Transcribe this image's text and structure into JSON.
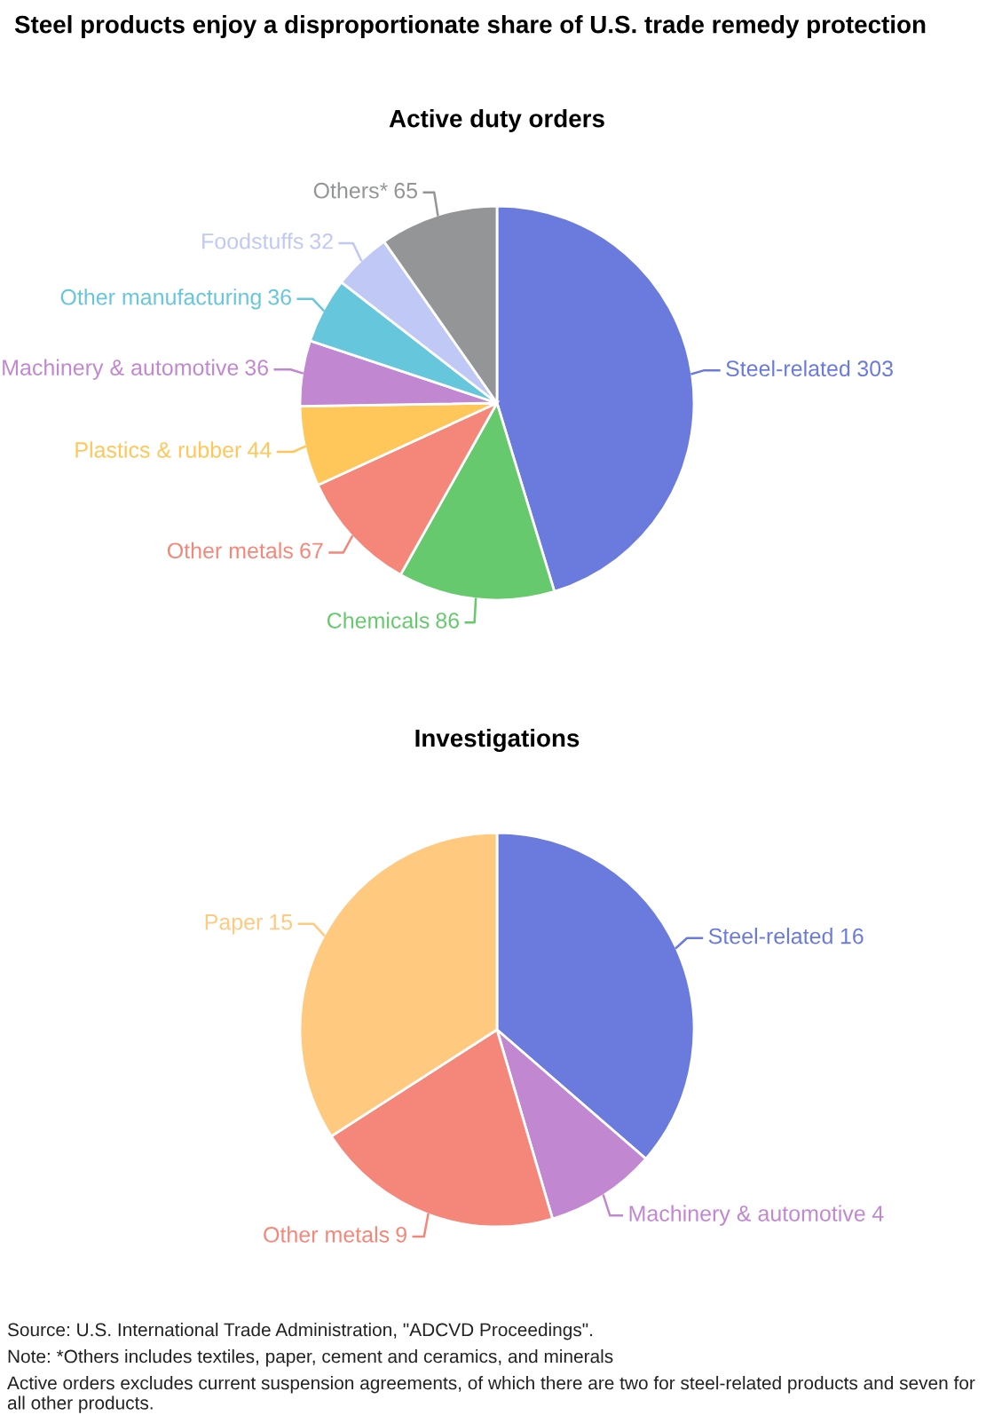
{
  "chart_data": [
    {
      "type": "pie",
      "title": "Steel products enjoy a disproportionate share of U.S. trade remedy protection",
      "subtitle": "Active duty orders",
      "categories": [
        "Steel-related",
        "Chemicals",
        "Other metals",
        "Plastics & rubber",
        "Machinery & automotive",
        "Other manufacturing",
        "Foodstuffs",
        "Others*"
      ],
      "values": [
        303,
        86,
        67,
        44,
        36,
        36,
        32,
        65
      ],
      "colors": [
        "#6b7bdd",
        "#66c96e",
        "#f4877a",
        "#ffc65a",
        "#c287d1",
        "#66c6dc",
        "#c0c8f5",
        "#939597"
      ],
      "data_labels": true,
      "legend": false
    },
    {
      "type": "pie",
      "subtitle": "Investigations",
      "categories": [
        "Steel-related",
        "Machinery & automotive",
        "Other metals",
        "Paper"
      ],
      "values": [
        16,
        4,
        9,
        15
      ],
      "colors": [
        "#6b7bdd",
        "#c287d1",
        "#f4877a",
        "#ffca80"
      ],
      "data_labels": true,
      "legend": false,
      "annotations": [
        "Source: U.S. International Trade Administration, \"ADCVD Proceedings\".",
        "Note: *Others includes textiles, paper, cement and ceramics, and minerals",
        "Active orders excludes current suspension agreements, of which there are two for steel-related products and seven for all other products."
      ]
    }
  ]
}
